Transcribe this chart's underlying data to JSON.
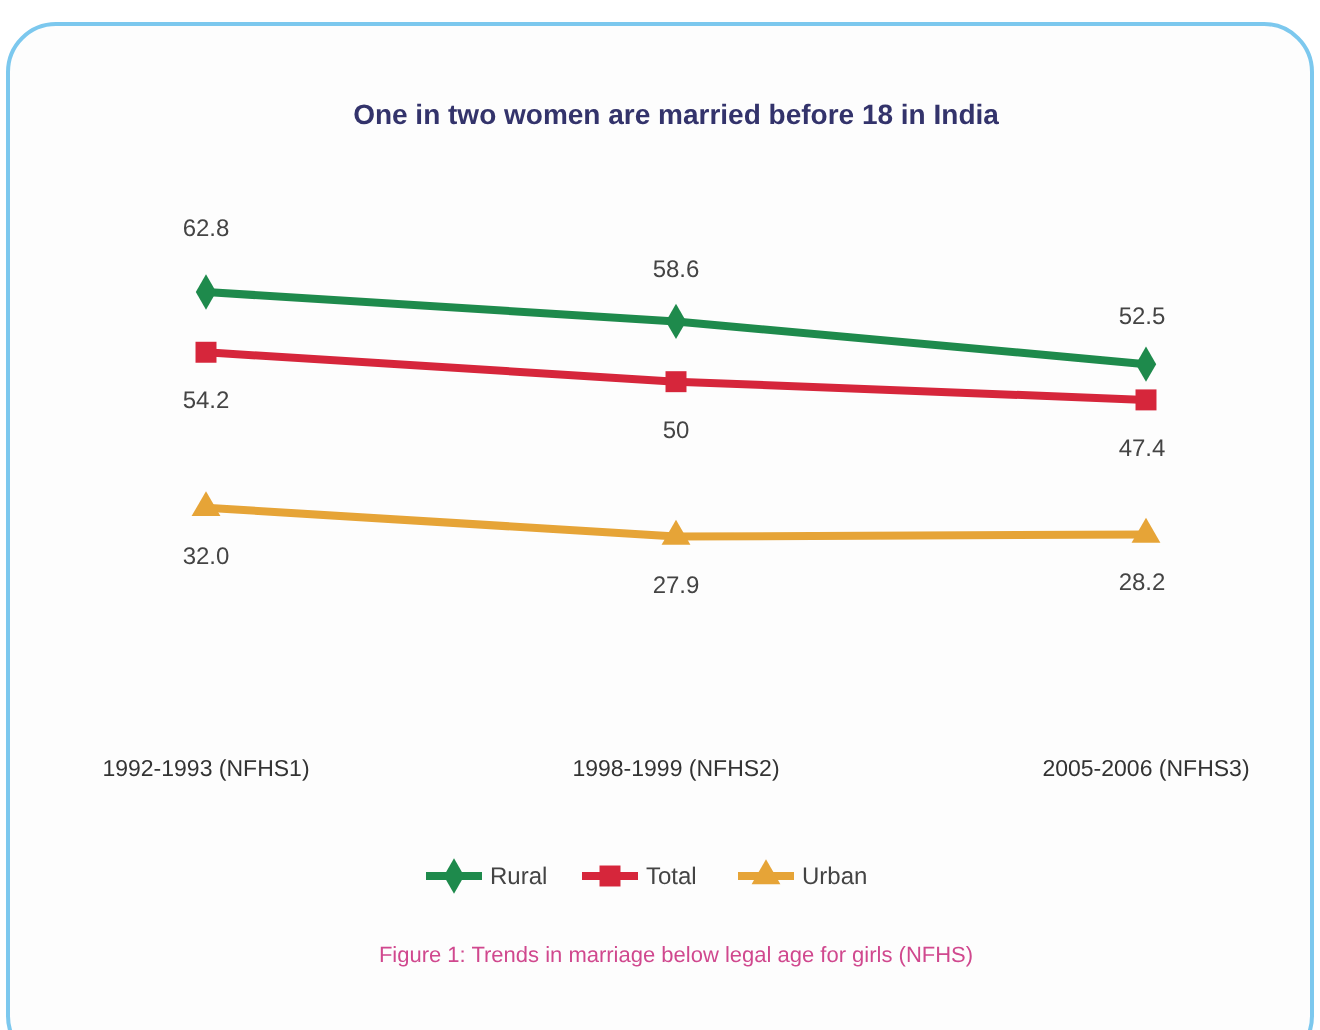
{
  "chart_data": {
    "type": "line",
    "title": "One in two women are married before 18 in India",
    "categories": [
      "1992-1993 (NFHS1)",
      "1998-1999 (NFHS2)",
      "2005-2006 (NFHS3)"
    ],
    "series": [
      {
        "name": "Rural",
        "color": "#1e8a4c",
        "marker": "diamond",
        "values": [
          62.8,
          58.6,
          52.5
        ],
        "value_labels": [
          "62.8",
          "58.6",
          "52.5"
        ]
      },
      {
        "name": "Total",
        "color": "#d6263b",
        "marker": "square",
        "values": [
          54.2,
          50,
          47.4
        ],
        "value_labels": [
          "54.2",
          "50",
          "47.4"
        ]
      },
      {
        "name": "Urban",
        "color": "#e6a437",
        "marker": "triangle",
        "values": [
          32.0,
          27.9,
          28.2
        ],
        "value_labels": [
          "32.0",
          "27.9",
          "28.2"
        ]
      }
    ],
    "legend": "bottom",
    "grid": false,
    "line_style": "solid",
    "annotations": [
      "Figure 1: Trends in marriage below legal age for girls (NFHS)"
    ]
  }
}
